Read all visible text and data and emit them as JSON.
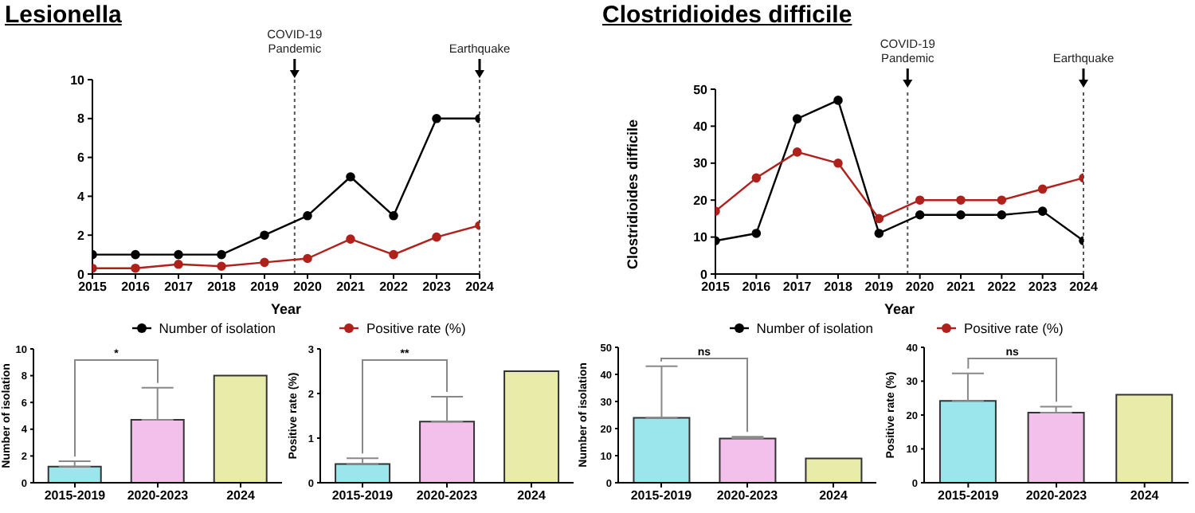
{
  "chart_data": [
    {
      "type": "line",
      "title": "Lesionella",
      "xlabel": "Year",
      "x": [
        2015,
        2016,
        2017,
        2018,
        2019,
        2020,
        2021,
        2022,
        2023,
        2024
      ],
      "xlim": [
        2015,
        2024
      ],
      "xticks": [
        2015,
        2016,
        2017,
        2018,
        2019,
        2020,
        2021,
        2022,
        2023,
        2024
      ],
      "ylim": [
        0,
        10
      ],
      "yticks": [
        0,
        2,
        4,
        6,
        8,
        10
      ],
      "marker": "circle",
      "legend": "bottom",
      "series": [
        {
          "name": "Number of isolation",
          "color": "#000000",
          "values": [
            1,
            1,
            1,
            1,
            2,
            3,
            5,
            3,
            8,
            8
          ]
        },
        {
          "name": "Positive rate (%)",
          "color": "#b0211c",
          "values": [
            0.3,
            0.3,
            0.5,
            0.4,
            0.6,
            0.8,
            1.8,
            1.0,
            1.9,
            2.5
          ]
        }
      ],
      "ref_lines": [
        {
          "axis": "x",
          "value": 2019.7,
          "label": "COVID-19 Pandemic",
          "line_style": "dotted"
        },
        {
          "axis": "x",
          "value": 2024,
          "label": "Earthquake",
          "line_style": "dotted"
        }
      ]
    },
    {
      "type": "line",
      "title": "Clostridioides difficile",
      "xlabel": "Year",
      "ylabel": "Clostridioides difficile",
      "x": [
        2015,
        2016,
        2017,
        2018,
        2019,
        2020,
        2021,
        2022,
        2023,
        2024
      ],
      "xlim": [
        2015,
        2024
      ],
      "xticks": [
        2015,
        2016,
        2017,
        2018,
        2019,
        2020,
        2021,
        2022,
        2023,
        2024
      ],
      "ylim": [
        0,
        50
      ],
      "yticks": [
        0,
        10,
        20,
        30,
        40,
        50
      ],
      "marker": "circle",
      "legend": "bottom",
      "series": [
        {
          "name": "Number of isolation",
          "color": "#000000",
          "values": [
            9,
            11,
            42,
            47,
            11,
            16,
            16,
            16,
            17,
            9
          ]
        },
        {
          "name": "Positive rate (%)",
          "color": "#b0211c",
          "values": [
            17,
            26,
            33,
            30,
            15,
            20,
            20,
            20,
            23,
            26
          ]
        }
      ],
      "ref_lines": [
        {
          "axis": "x",
          "value": 2019.7,
          "label": "COVID-19 Pandemic",
          "line_style": "dotted"
        },
        {
          "axis": "x",
          "value": 2024,
          "label": "Earthquake",
          "line_style": "dotted"
        }
      ]
    },
    {
      "type": "bar",
      "ylabel": "Number of isolation",
      "categories": [
        "2015-2019",
        "2020-2023",
        "2024"
      ],
      "values": [
        1.2,
        4.7,
        8
      ],
      "colors": [
        "#9be6ec",
        "#f2c0ea",
        "#e8eca8"
      ],
      "errors": [
        [
          1.2,
          1.6
        ],
        [
          4.7,
          7.1
        ],
        null
      ],
      "ylim": [
        0,
        10
      ],
      "yticks": [
        0,
        2,
        4,
        6,
        8,
        10
      ],
      "annotations": [
        "*"
      ]
    },
    {
      "type": "bar",
      "ylabel": "Positive rate (%)",
      "categories": [
        "2015-2019",
        "2020-2023",
        "2024"
      ],
      "values": [
        0.42,
        1.37,
        2.5
      ],
      "colors": [
        "#9be6ec",
        "#f2c0ea",
        "#e8eca8"
      ],
      "errors": [
        [
          0.42,
          0.55
        ],
        [
          1.37,
          1.93
        ],
        null
      ],
      "ylim": [
        0,
        3
      ],
      "yticks": [
        0,
        1,
        2,
        3
      ],
      "annotations": [
        "**"
      ]
    },
    {
      "type": "bar",
      "ylabel": "Number of isolation",
      "categories": [
        "2015-2019",
        "2020-2023",
        "2024"
      ],
      "values": [
        24,
        16.3,
        9
      ],
      "colors": [
        "#9be6ec",
        "#f2c0ea",
        "#e8eca8"
      ],
      "errors": [
        [
          24,
          43
        ],
        [
          16.3,
          17
        ],
        null
      ],
      "ylim": [
        0,
        50
      ],
      "yticks": [
        0,
        10,
        20,
        30,
        40,
        50
      ],
      "annotations": [
        "ns"
      ]
    },
    {
      "type": "bar",
      "ylabel": "Positive rate (%)",
      "categories": [
        "2015-2019",
        "2020-2023",
        "2024"
      ],
      "values": [
        24.2,
        20.7,
        26
      ],
      "colors": [
        "#9be6ec",
        "#f2c0ea",
        "#e8eca8"
      ],
      "errors": [
        [
          24.2,
          32.3
        ],
        [
          20.7,
          22.5
        ],
        null
      ],
      "ylim": [
        0,
        40
      ],
      "yticks": [
        0,
        10,
        20,
        30,
        40
      ],
      "annotations": [
        "ns"
      ]
    }
  ]
}
